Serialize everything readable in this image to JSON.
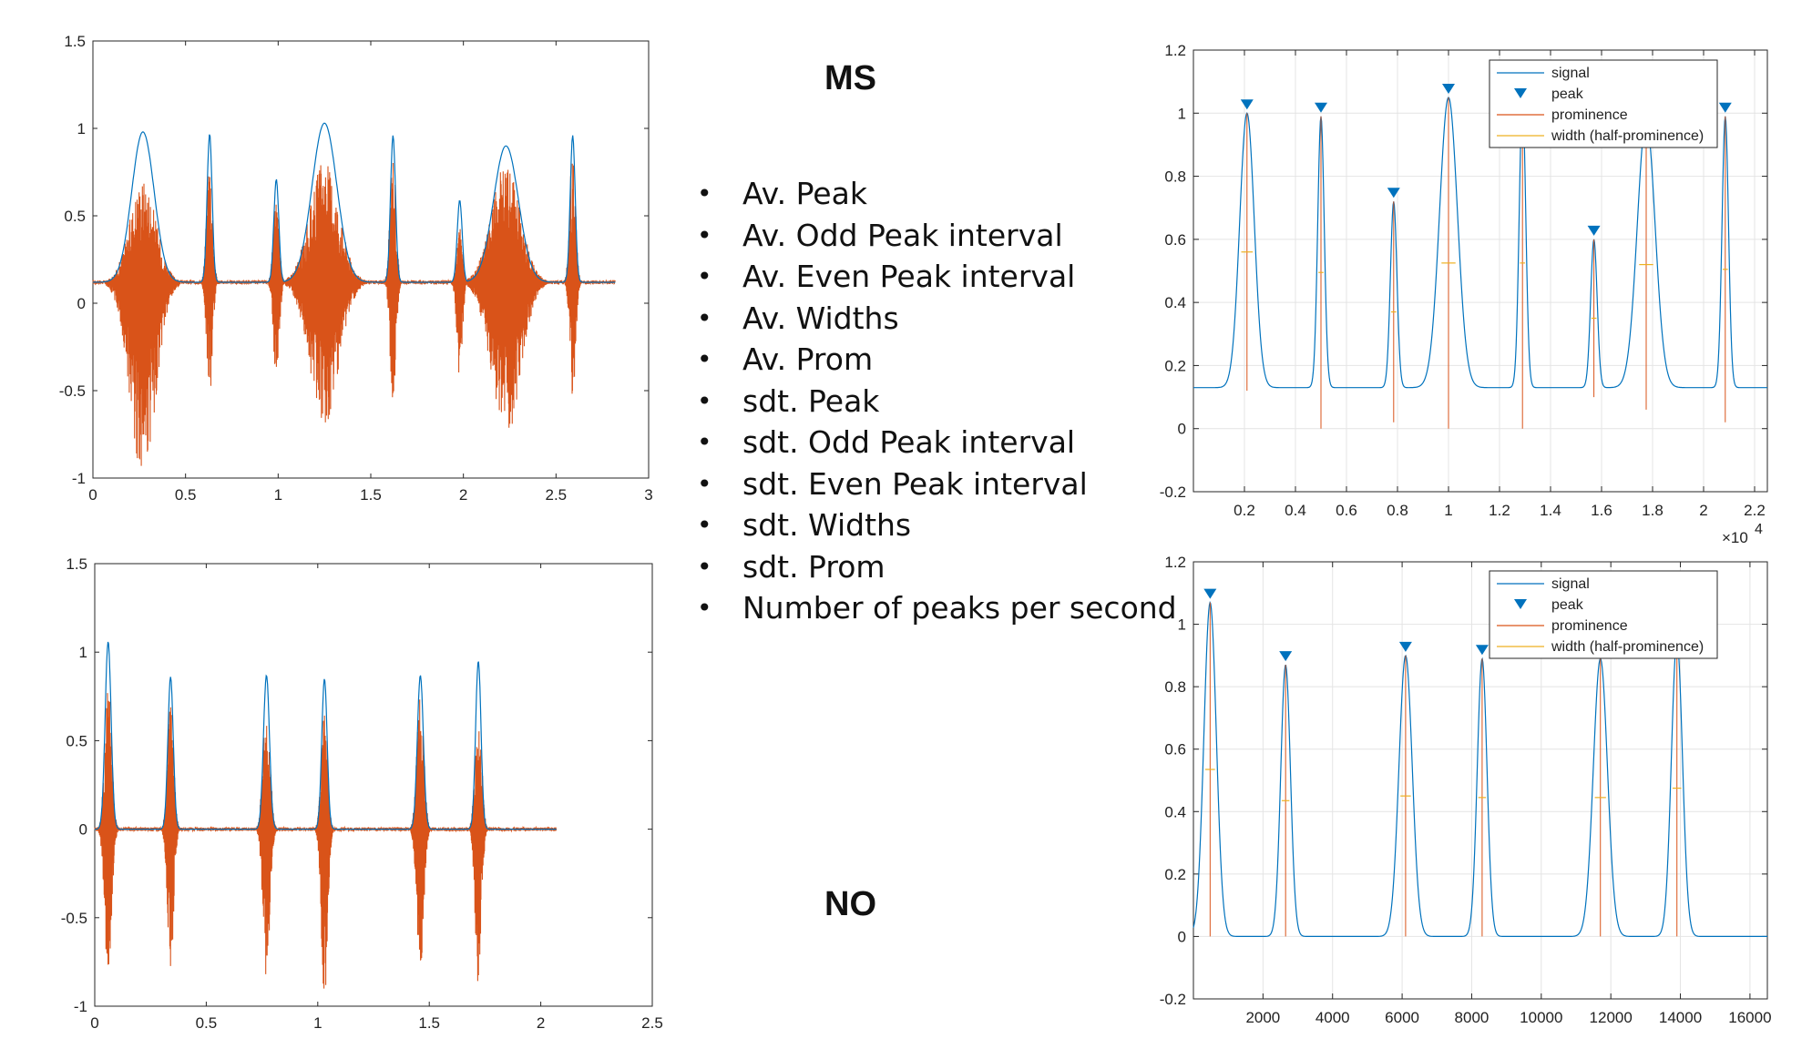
{
  "labels": {
    "top": "MS",
    "bottom": "NO"
  },
  "features": [
    "Av. Peak",
    "Av. Odd Peak interval",
    "Av. Even Peak interval",
    "Av. Widths",
    "Av. Prom",
    "sdt. Peak",
    "sdt. Odd Peak interval",
    "sdt. Even Peak interval",
    "sdt. Widths",
    "sdt. Prom",
    "Number of peaks per second"
  ],
  "colors": {
    "signal": "#0072BD",
    "raw": "#D95319",
    "prominence": "#D95319",
    "width": "#EDB120",
    "grid": "#e4e4e4"
  },
  "chart_data": [
    {
      "id": "ms-waveform",
      "type": "line",
      "xlim": [
        0,
        3
      ],
      "ylim": [
        -1,
        1.5
      ],
      "xticks": [
        0,
        0.5,
        1,
        1.5,
        2,
        2.5,
        3
      ],
      "xtick_labels": [
        "0",
        "0.5",
        "1",
        "1.5",
        "2",
        "2.5",
        "3"
      ],
      "yticks": [
        -1,
        -0.5,
        0,
        0.5,
        1,
        1.5
      ],
      "ytick_labels": [
        "-1",
        "-0.5",
        "0",
        "0.5",
        "1",
        "1.5"
      ],
      "grid": false,
      "bursts": [
        {
          "center": 0.27,
          "amp": 0.98,
          "width": 0.09,
          "raw_pos": 0.72,
          "raw_neg": -1.0
        },
        {
          "center": 0.63,
          "amp": 0.97,
          "width": 0.02,
          "raw_pos": 0.88,
          "raw_neg": -0.55
        },
        {
          "center": 0.99,
          "amp": 0.71,
          "width": 0.02,
          "raw_pos": 0.62,
          "raw_neg": -0.5
        },
        {
          "center": 1.25,
          "amp": 1.03,
          "width": 0.1,
          "raw_pos": 0.82,
          "raw_neg": -0.7
        },
        {
          "center": 1.62,
          "amp": 0.96,
          "width": 0.02,
          "raw_pos": 0.9,
          "raw_neg": -0.6
        },
        {
          "center": 1.98,
          "amp": 0.59,
          "width": 0.02,
          "raw_pos": 0.45,
          "raw_neg": -0.45
        },
        {
          "center": 2.23,
          "amp": 0.9,
          "width": 0.1,
          "raw_pos": 0.8,
          "raw_neg": -0.78
        },
        {
          "center": 2.59,
          "amp": 0.96,
          "width": 0.02,
          "raw_pos": 0.9,
          "raw_neg": -0.55
        }
      ],
      "baseline": 0.12,
      "x_end": 2.82
    },
    {
      "id": "no-waveform",
      "type": "line",
      "xlim": [
        0,
        2.5
      ],
      "ylim": [
        -1,
        1.5
      ],
      "xticks": [
        0,
        0.5,
        1,
        1.5,
        2,
        2.5
      ],
      "xtick_labels": [
        "0",
        "0.5",
        "1",
        "1.5",
        "2",
        "2.5"
      ],
      "yticks": [
        -1,
        -0.5,
        0,
        0.5,
        1,
        1.5
      ],
      "ytick_labels": [
        "-1",
        "-0.5",
        "0",
        "0.5",
        "1",
        "1.5"
      ],
      "grid": false,
      "bursts": [
        {
          "center": 0.06,
          "amp": 1.06,
          "width": 0.02,
          "raw_pos": 0.8,
          "raw_neg": -0.85
        },
        {
          "center": 0.34,
          "amp": 0.86,
          "width": 0.018,
          "raw_pos": 0.7,
          "raw_neg": -0.8
        },
        {
          "center": 0.77,
          "amp": 0.87,
          "width": 0.02,
          "raw_pos": 0.75,
          "raw_neg": -0.85
        },
        {
          "center": 1.03,
          "amp": 0.85,
          "width": 0.018,
          "raw_pos": 0.7,
          "raw_neg": -1.0
        },
        {
          "center": 1.46,
          "amp": 0.87,
          "width": 0.02,
          "raw_pos": 0.8,
          "raw_neg": -0.85
        },
        {
          "center": 1.72,
          "amp": 0.95,
          "width": 0.018,
          "raw_pos": 0.8,
          "raw_neg": -0.88
        }
      ],
      "baseline": 0.0,
      "x_end": 2.07
    },
    {
      "id": "ms-peaks",
      "type": "line",
      "xlim": [
        0,
        2250
      ],
      "ylim": [
        -0.2,
        1.2
      ],
      "xticks": [
        200,
        400,
        600,
        800,
        1000,
        1200,
        1400,
        1600,
        1800,
        2000,
        2200
      ],
      "xtick_labels": [
        "0.2",
        "0.4",
        "0.6",
        "0.8",
        "1",
        "1.2",
        "1.4",
        "1.6",
        "1.8",
        "2",
        "2.2"
      ],
      "x_multiplier": "×10",
      "x_multiplier_exp": "4",
      "yticks": [
        -0.2,
        0,
        0.2,
        0.4,
        0.6,
        0.8,
        1,
        1.2
      ],
      "ytick_labels": [
        "-0.2",
        "0",
        "0.2",
        "0.4",
        "0.6",
        "0.8",
        "1",
        "1.2"
      ],
      "grid": true,
      "legend": {
        "placement": "top-right",
        "entries": [
          "signal",
          "peak",
          "prominence",
          "width (half-prominence)"
        ]
      },
      "peaks": [
        {
          "x": 210,
          "y": 1.0,
          "prom": 0.88,
          "width": 45
        },
        {
          "x": 500,
          "y": 0.99,
          "prom": 0.99,
          "width": 20
        },
        {
          "x": 785,
          "y": 0.72,
          "prom": 0.7,
          "width": 20
        },
        {
          "x": 1000,
          "y": 1.05,
          "prom": 1.05,
          "width": 55
        },
        {
          "x": 1290,
          "y": 1.05,
          "prom": 1.05,
          "width": 20
        },
        {
          "x": 1570,
          "y": 0.6,
          "prom": 0.5,
          "width": 20
        },
        {
          "x": 1775,
          "y": 0.98,
          "prom": 0.92,
          "width": 55
        },
        {
          "x": 2085,
          "y": 0.99,
          "prom": 0.97,
          "width": 20
        }
      ],
      "baseline": 0.13
    },
    {
      "id": "no-peaks",
      "type": "line",
      "xlim": [
        0,
        16500
      ],
      "ylim": [
        -0.2,
        1.2
      ],
      "xticks": [
        2000,
        4000,
        6000,
        8000,
        10000,
        12000,
        14000,
        16000
      ],
      "xtick_labels": [
        "2000",
        "4000",
        "6000",
        "8000",
        "10000",
        "12000",
        "14000",
        "16000"
      ],
      "yticks": [
        -0.2,
        0,
        0.2,
        0.4,
        0.6,
        0.8,
        1,
        1.2
      ],
      "ytick_labels": [
        "-0.2",
        "0",
        "0.2",
        "0.4",
        "0.6",
        "0.8",
        "1",
        "1.2"
      ],
      "grid": true,
      "legend": {
        "placement": "top-right",
        "entries": [
          "signal",
          "peak",
          "prominence",
          "width (half-prominence)"
        ]
      },
      "peaks": [
        {
          "x": 480,
          "y": 1.07,
          "prom": 1.07,
          "width": 280
        },
        {
          "x": 2650,
          "y": 0.87,
          "prom": 0.87,
          "width": 220
        },
        {
          "x": 6100,
          "y": 0.9,
          "prom": 0.9,
          "width": 300
        },
        {
          "x": 8300,
          "y": 0.89,
          "prom": 0.89,
          "width": 220
        },
        {
          "x": 11700,
          "y": 0.89,
          "prom": 0.89,
          "width": 320
        },
        {
          "x": 13900,
          "y": 0.95,
          "prom": 0.95,
          "width": 250
        }
      ],
      "baseline": 0.0
    }
  ]
}
